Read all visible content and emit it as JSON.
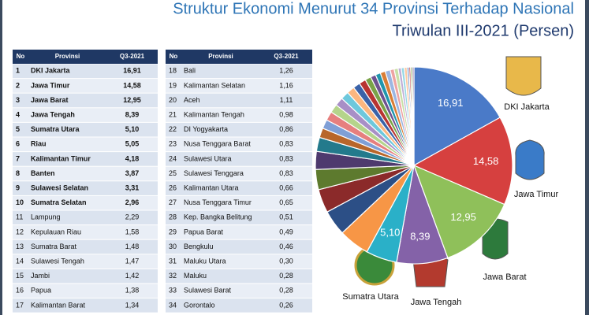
{
  "title": [
    "Struktur Ekonomi Menurut 34 Provinsi Terhadap Nasional",
    "Triwulan III-2021 (Persen)"
  ],
  "tables": [
    {
      "columns": [
        "No",
        "Provinsi",
        "Q3-2021"
      ],
      "numbers": [
        1,
        2,
        3,
        4,
        5,
        6,
        7,
        8,
        9,
        10,
        11,
        12,
        13,
        14,
        15,
        16,
        17
      ]
    },
    {
      "columns": [
        "No",
        "Provinsi",
        "Q3-2021"
      ],
      "numbers": [
        18,
        19,
        20,
        21,
        22,
        23,
        24,
        25,
        26,
        27,
        28,
        29,
        30,
        31,
        32,
        33,
        34
      ]
    }
  ],
  "chart_data": {
    "type": "pie",
    "categories": [
      "DKI Jakarta",
      "Jawa Timur",
      "Jawa Barat",
      "Jawa Tengah",
      "Sumatra Utara",
      "Riau",
      "Kalimantan Timur",
      "Banten",
      "Sulawesi Selatan",
      "Sumatra Selatan",
      "Lampung",
      "Kepulauan Riau",
      "Sumatra Barat",
      "Sulawesi Tengah",
      "Jambi",
      "Papua",
      "Kalimantan Barat",
      "Bali",
      "Kalimantan Selatan",
      "Aceh",
      "Kalimantan Tengah",
      "DI Yogyakarta",
      "Nusa Tenggara Barat",
      "Sulawesi Utara",
      "Sulawesi Tenggara",
      "Kalimantan Utara",
      "Nusa Tenggara Timur",
      "Kep. Bangka Belitung",
      "Papua Barat",
      "Bengkulu",
      "Maluku Utara",
      "Maluku",
      "Sulawesi Barat",
      "Gorontalo"
    ],
    "values": [
      16.91,
      14.58,
      12.95,
      8.39,
      5.1,
      5.05,
      4.18,
      3.87,
      3.31,
      2.96,
      2.29,
      1.58,
      1.48,
      1.47,
      1.42,
      1.38,
      1.34,
      1.26,
      1.16,
      1.11,
      0.98,
      0.86,
      0.83,
      0.83,
      0.83,
      0.66,
      0.65,
      0.51,
      0.49,
      0.46,
      0.3,
      0.28,
      0.28,
      0.26
    ],
    "value_labels": [
      "16,91",
      "14,58",
      "12,95",
      "8,39",
      "5,10",
      "5,05",
      "4,18",
      "3,87",
      "3,31",
      "2,96",
      "2,29",
      "1,58",
      "1,48",
      "1,47",
      "1,42",
      "1,38",
      "1,34",
      "1,26",
      "1,16",
      "1,11",
      "0,98",
      "0,86",
      "0,83",
      "0,83",
      "0,83",
      "0,66",
      "0,65",
      "0,51",
      "0,49",
      "0,46",
      "0,30",
      "0,28",
      "0,28",
      "0,26"
    ],
    "colors": [
      "#4a7ac8",
      "#d6403f",
      "#8fc05a",
      "#8462a8",
      "#2ab0c8",
      "#f79646",
      "#2c4f86",
      "#8b2a2a",
      "#5d7a2e",
      "#4e3a6e",
      "#237a8c",
      "#b8662a",
      "#7f9fd6",
      "#e67f7e",
      "#b5d48b",
      "#a88fc6",
      "#6ec8dc",
      "#fab67f",
      "#3a62a8",
      "#b83432",
      "#7aa348",
      "#6e5290",
      "#2096ad",
      "#d97d35",
      "#9cb6e2",
      "#eea3a2",
      "#c9e0a8",
      "#bfaed6",
      "#96d8e6",
      "#fcc9a1",
      "#5e83c4",
      "#c45250",
      "#87ad5a",
      "#7c66a0"
    ]
  }
}
